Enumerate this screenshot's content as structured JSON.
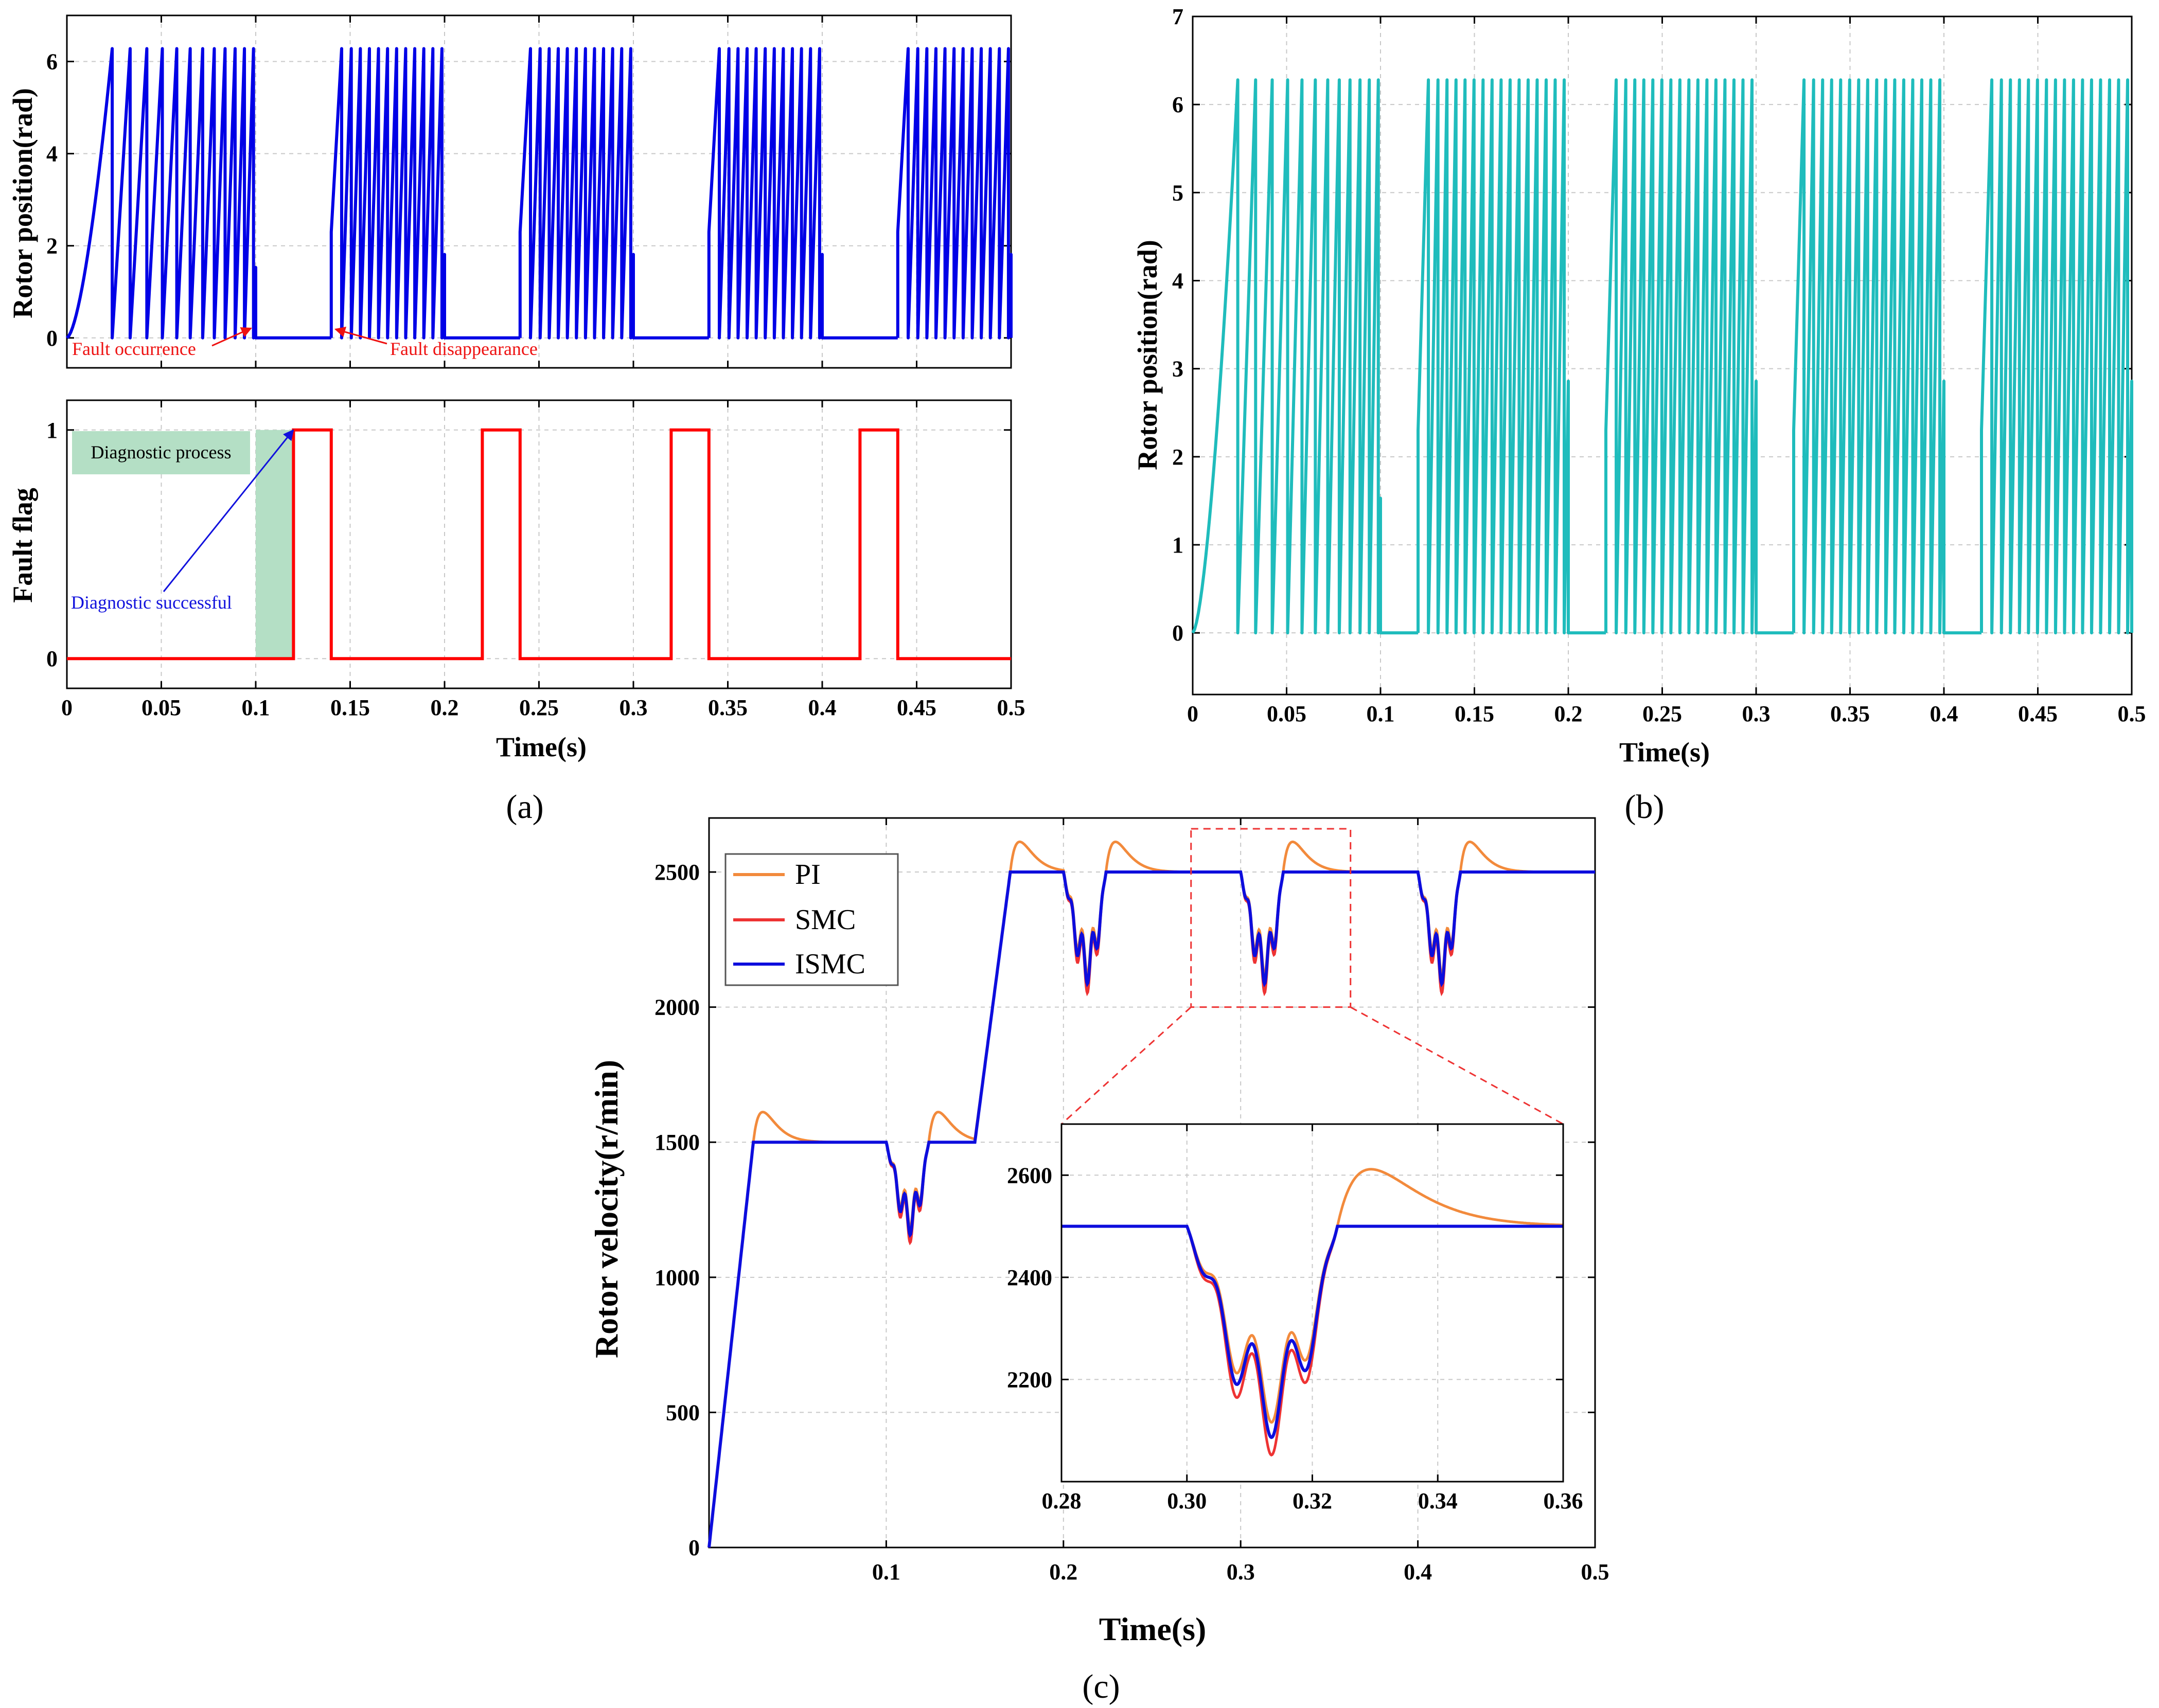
{
  "colors": {
    "rotor": "#0000e6",
    "flag": "#ff0000",
    "cyan": "#1fbcbc",
    "pi": "#f28a3c",
    "smc": "#ee3333",
    "ismc": "#0d0ddd",
    "anno_red": "#ee1111",
    "anno_blue": "#1111dd",
    "diag_fill": "#b4dfc5"
  },
  "panel_labels": {
    "a": "(a)",
    "b": "(b)",
    "c": "(c)"
  },
  "chart_data": [
    {
      "id": "a_top",
      "type": "line",
      "xlabel": "",
      "ylabel": "Rotor position(rad)",
      "xlim": [
        0,
        0.5
      ],
      "ylim": [
        -0.65,
        7.0
      ],
      "yticks": [
        0,
        2,
        4,
        6
      ],
      "ytick_labels": [
        "0",
        "2",
        "4",
        "6"
      ],
      "series": [
        {
          "name": "Rotor position",
          "waveform": "sawtooth",
          "peak": 6.28,
          "start_ramp_end": 0.024,
          "active_intervals": [
            [
              0.0,
              0.1
            ],
            [
              0.14,
              0.2
            ],
            [
              0.24,
              0.3
            ],
            [
              0.34,
              0.4
            ],
            [
              0.44,
              0.5
            ]
          ],
          "drop_times": [
            0.024,
            0.0335,
            0.043,
            0.0525,
            0.062,
            0.0715,
            0.081,
            0.0905
          ]
        }
      ],
      "annotations": [
        {
          "text": "Fault occurrence",
          "x": 0.1,
          "y": 0
        },
        {
          "text": "Fault disappearance",
          "x": 0.14,
          "y": 0
        }
      ]
    },
    {
      "id": "a_bottom",
      "type": "line",
      "xlabel": "Time(s)",
      "ylabel": "Fault flag",
      "xlim": [
        0,
        0.5
      ],
      "ylim": [
        -0.13,
        1.13
      ],
      "xticks": [
        0,
        0.05,
        0.1,
        0.15,
        0.2,
        0.25,
        0.3,
        0.35,
        0.4,
        0.45,
        0.5
      ],
      "xtick_labels": [
        "0",
        "0.05",
        "0.1",
        "0.15",
        "0.2",
        "0.25",
        "0.3",
        "0.35",
        "0.4",
        "0.45",
        "0.5"
      ],
      "yticks": [
        0,
        1
      ],
      "ytick_labels": [
        "0",
        "1"
      ],
      "series": [
        {
          "name": "Fault flag",
          "pulses": [
            [
              0.12,
              0.14
            ],
            [
              0.22,
              0.24
            ],
            [
              0.32,
              0.34
            ],
            [
              0.42,
              0.44
            ]
          ]
        }
      ],
      "shaded_region": {
        "label": "Diagnostic process",
        "x_start": 0.1,
        "x_end": 0.12
      },
      "annotations": [
        {
          "text": "Diagnostic process"
        },
        {
          "text": "Diagnostic successful",
          "x": 0.12,
          "y": 1
        }
      ]
    },
    {
      "id": "b",
      "type": "line",
      "xlabel": "Time(s)",
      "ylabel": "Rotor position(rad)",
      "xlim": [
        0,
        0.5
      ],
      "ylim": [
        -0.7,
        7.0
      ],
      "xticks": [
        0,
        0.05,
        0.1,
        0.15,
        0.2,
        0.25,
        0.3,
        0.35,
        0.4,
        0.45,
        0.5
      ],
      "xtick_labels": [
        "0",
        "0.05",
        "0.1",
        "0.15",
        "0.2",
        "0.25",
        "0.3",
        "0.35",
        "0.4",
        "0.45",
        "0.5"
      ],
      "yticks": [
        0,
        1,
        2,
        3,
        4,
        5,
        6,
        7
      ],
      "ytick_labels": [
        "0",
        "1",
        "2",
        "3",
        "4",
        "5",
        "6",
        "7"
      ],
      "series": [
        {
          "name": "Rotor position",
          "waveform": "sawtooth",
          "peak": 6.28,
          "active_intervals": [
            [
              0.0,
              0.1
            ],
            [
              0.12,
              0.2
            ],
            [
              0.22,
              0.3
            ],
            [
              0.32,
              0.4
            ],
            [
              0.42,
              0.5
            ]
          ],
          "drop_times": [
            0.024,
            0.0335,
            0.043,
            0.0525,
            0.062,
            0.0715,
            0.081,
            0.0905
          ]
        }
      ]
    },
    {
      "id": "c",
      "type": "line",
      "xlabel": "Time(s)",
      "ylabel": "Rotor velocity(r/min)",
      "xlim": [
        0,
        0.5
      ],
      "ylim": [
        0,
        2700
      ],
      "xticks": [
        0.1,
        0.2,
        0.3,
        0.4,
        0.5
      ],
      "xtick_labels": [
        "0.1",
        "0.2",
        "0.3",
        "0.4",
        "0.5"
      ],
      "yticks": [
        0,
        500,
        1000,
        1500,
        2000,
        2500
      ],
      "ytick_labels": [
        "0",
        "500",
        "1000",
        "1500",
        "2000",
        "2500"
      ],
      "legend": [
        "PI",
        "SMC",
        "ISMC"
      ],
      "series": [
        {
          "name": "PI",
          "base_overshoot": 120,
          "dips_at": [
            0.1,
            0.2,
            0.3,
            0.4
          ]
        },
        {
          "name": "SMC",
          "base_overshoot": 0,
          "dips_at": [
            0.1,
            0.2,
            0.3,
            0.4
          ]
        },
        {
          "name": "ISMC",
          "base_overshoot": 0,
          "dips_at": [
            0.1,
            0.2,
            0.3,
            0.4
          ]
        }
      ],
      "inset": {
        "xlim": [
          0.28,
          0.36
        ],
        "ylim": [
          2000,
          2700
        ],
        "xticks": [
          0.28,
          0.3,
          0.32,
          0.34,
          0.36
        ],
        "xtick_labels": [
          "0.28",
          "0.30",
          "0.32",
          "0.34",
          "0.36"
        ],
        "yticks": [
          2200,
          2400,
          2600
        ],
        "ytick_labels": [
          "2200",
          "2400",
          "2600"
        ],
        "zoom_box": {
          "x": [
            0.272,
            0.362
          ],
          "y": [
            2000,
            2660
          ]
        }
      }
    }
  ]
}
